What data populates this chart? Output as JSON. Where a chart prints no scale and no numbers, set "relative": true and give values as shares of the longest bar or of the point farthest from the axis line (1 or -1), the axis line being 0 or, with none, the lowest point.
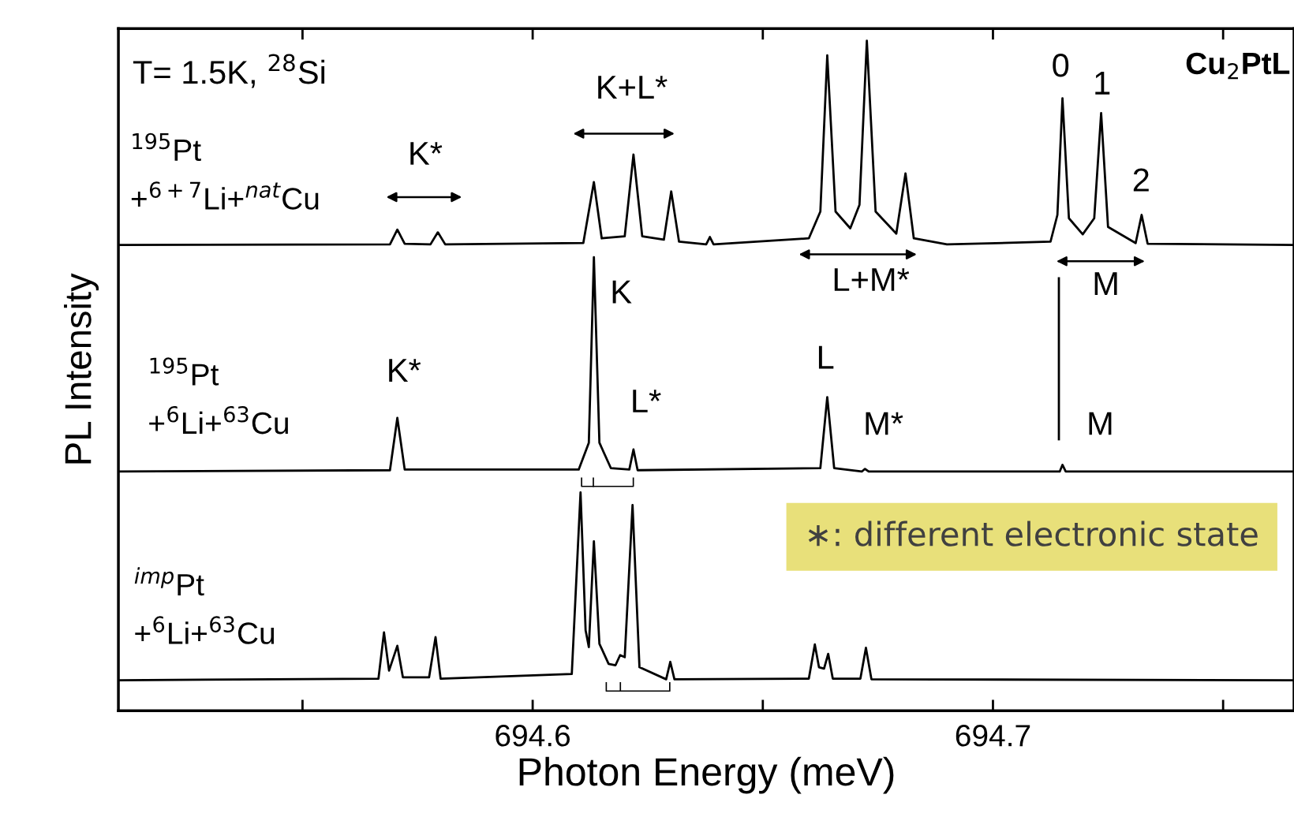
{
  "chart_data": {
    "type": "line",
    "relative": true,
    "xlabel": "Photon Energy (meV)",
    "ylabel": "PL Intensity",
    "tick_labels": "x",
    "grid": false,
    "legend": false,
    "xlim": [
      694.51,
      694.7654
    ],
    "xticks": [
      {
        "value": 694.55,
        "label": null
      },
      694.6,
      {
        "value": 694.65,
        "label": null
      },
      694.7,
      {
        "value": 694.75,
        "label": null
      }
    ],
    "series": [
      {
        "color": "#000000",
        "x": [
          694.51,
          694.569,
          694.5706,
          694.5722,
          694.5778,
          694.5794,
          694.581,
          694.611,
          694.6133,
          694.615,
          694.62,
          694.6219,
          694.6238,
          694.6285,
          694.6301,
          694.6318,
          694.6377,
          694.6385,
          694.6393,
          694.66,
          694.6625,
          694.664,
          694.6658,
          694.669,
          694.671,
          694.6726,
          694.6745,
          694.679,
          694.681,
          694.6828,
          694.69,
          694.7125,
          694.714,
          694.7151,
          694.7165,
          694.7195,
          694.722,
          694.7235,
          694.725,
          694.731,
          694.7323,
          694.7336,
          694.7654
        ],
        "values": [
          0.695,
          0.696,
          0.718,
          0.697,
          0.696,
          0.714,
          0.696,
          0.698,
          0.789,
          0.705,
          0.708,
          0.83,
          0.708,
          0.703,
          0.775,
          0.7,
          0.696,
          0.707,
          0.696,
          0.705,
          0.745,
          0.978,
          0.745,
          0.72,
          0.755,
          1.0,
          0.745,
          0.712,
          0.802,
          0.705,
          0.696,
          0.7,
          0.74,
          0.914,
          0.735,
          0.711,
          0.735,
          0.892,
          0.722,
          0.698,
          0.74,
          0.697,
          0.695
        ]
      },
      {
        "color": "#000000",
        "x": [
          694.51,
          694.569,
          694.5706,
          694.5722,
          694.61,
          694.6122,
          694.6133,
          694.6145,
          694.617,
          694.621,
          694.6219,
          694.6228,
          694.6625,
          694.664,
          694.6655,
          694.6715,
          694.6722,
          694.673,
          694.7145,
          694.7151,
          694.7158,
          694.7654
        ],
        "values": [
          0.357,
          0.359,
          0.437,
          0.36,
          0.36,
          0.4,
          0.677,
          0.4,
          0.362,
          0.36,
          0.39,
          0.359,
          0.362,
          0.468,
          0.362,
          0.357,
          0.361,
          0.357,
          0.357,
          0.367,
          0.357,
          0.357
        ]
      },
      {
        "color": "#000000",
        "x": [
          694.51,
          694.5665,
          694.5677,
          694.5688,
          694.5706,
          694.5718,
          694.5775,
          694.5789,
          694.58,
          694.6085,
          694.6104,
          694.6115,
          694.6122,
          694.6133,
          694.6145,
          694.6165,
          694.618,
          694.619,
          694.62,
          694.6217,
          694.6232,
          694.629,
          694.6299,
          694.6308,
          694.66,
          694.6613,
          694.6622,
          694.6633,
          694.6642,
          694.6652,
          694.6712,
          694.6724,
          694.6736,
          694.7654
        ],
        "values": [
          0.0456,
          0.048,
          0.117,
          0.06,
          0.097,
          0.05,
          0.05,
          0.11,
          0.048,
          0.055,
          0.326,
          0.12,
          0.095,
          0.253,
          0.1,
          0.07,
          0.068,
          0.083,
          0.08,
          0.307,
          0.065,
          0.047,
          0.073,
          0.047,
          0.048,
          0.099,
          0.065,
          0.063,
          0.085,
          0.048,
          0.048,
          0.094,
          0.047,
          0.0456
        ]
      }
    ],
    "annotations": [
      "T= 1.5K, $^{28}$Si",
      "Cu$_{2}$PtL",
      "$^{195}$Pt\n+$^{6+7}$Li+$^{nat}$Cu",
      "$^{195}$Pt\n+$^{6}$Li+$^{63}$Cu",
      "$^{imp}$Pt\n+$^{6}$Li+$^{63}$Cu",
      "∗: different electronic state",
      "K*",
      "K+L*",
      "L+M*",
      "0",
      "1",
      "2",
      "M",
      "K*",
      "K",
      "L*",
      "L",
      "M*",
      "M"
    ]
  }
}
